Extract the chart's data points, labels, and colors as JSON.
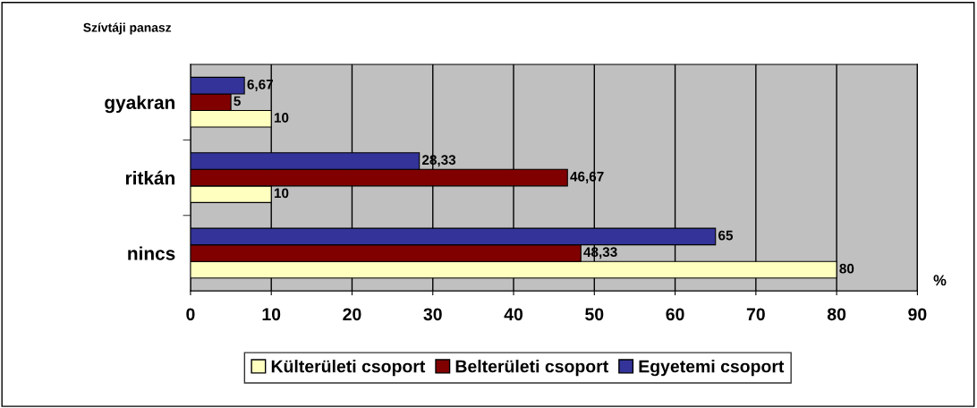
{
  "chart_data": {
    "type": "bar",
    "orientation": "horizontal",
    "title": "Szívtáji panasz",
    "categories": [
      "gyakran",
      "ritkán",
      "nincs"
    ],
    "series": [
      {
        "name": "Külterületi csoport",
        "color": "#ffffc0",
        "values": [
          10,
          10,
          80
        ],
        "value_labels": [
          "10",
          "10",
          "80"
        ]
      },
      {
        "name": "Belterületi csoport",
        "color": "#800000",
        "values": [
          5,
          46.67,
          48.33
        ],
        "value_labels": [
          "5",
          "46,67",
          "48,33"
        ]
      },
      {
        "name": "Egyetemi csoport",
        "color": "#333399",
        "values": [
          6.67,
          28.33,
          65
        ],
        "value_labels": [
          "6,67",
          "28,33",
          "65"
        ]
      }
    ],
    "xlim": [
      0,
      90
    ],
    "xticks": [
      0,
      10,
      20,
      30,
      40,
      50,
      60,
      70,
      80,
      90
    ],
    "grid": "x",
    "legend": "bottom",
    "annotations": [
      "%"
    ]
  }
}
